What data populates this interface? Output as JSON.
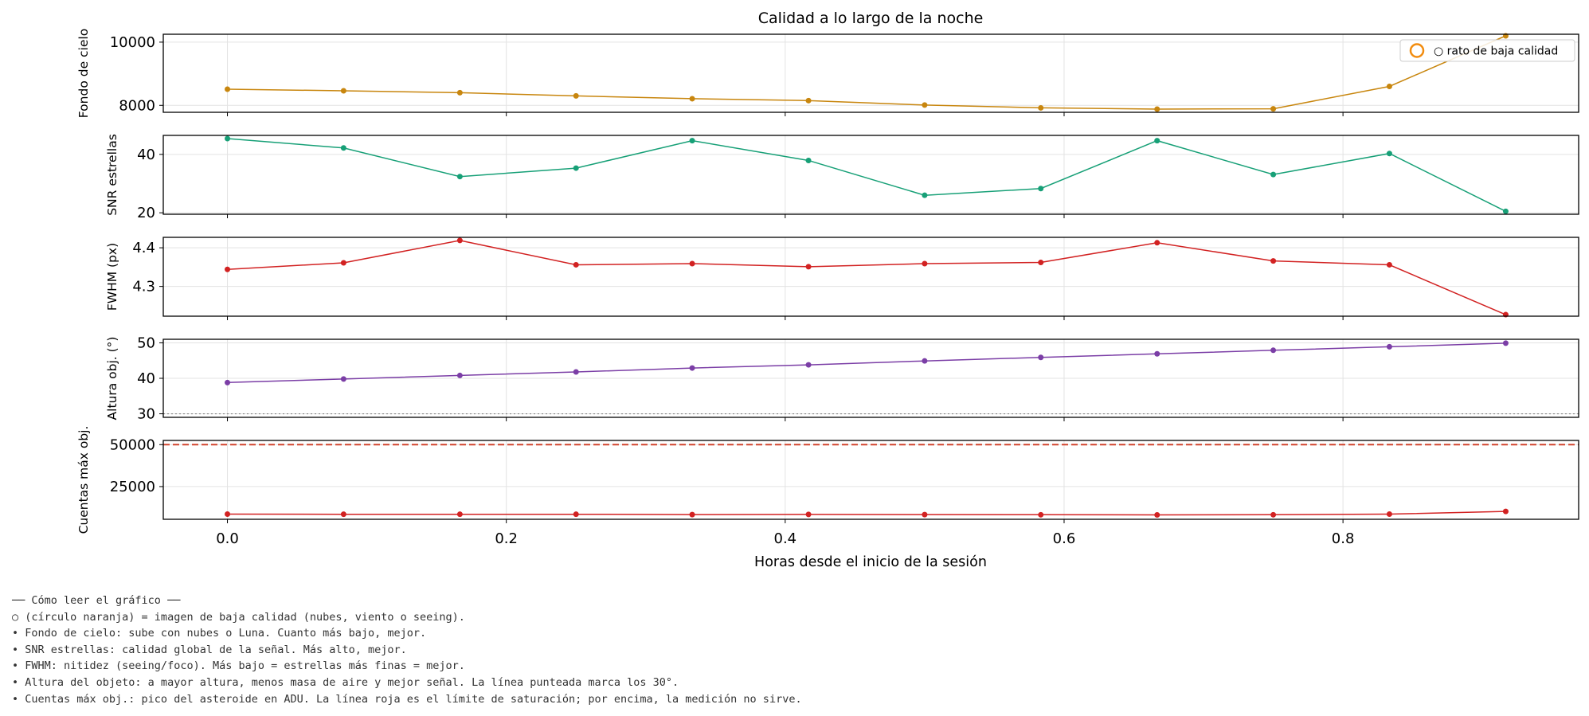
{
  "chart_data": {
    "type": "line",
    "title": "Calidad a lo largo de la noche",
    "xlabel": "Horas desde el inicio de la sesión",
    "xlim": [
      -0.046,
      0.969
    ],
    "x_ticks": [
      0.0,
      0.2,
      0.4,
      0.6,
      0.8
    ],
    "x_tick_labels": [
      "0.0",
      "0.2",
      "0.4",
      "0.6",
      "0.8"
    ],
    "x": [
      0.0,
      0.0833,
      0.1667,
      0.25,
      0.3333,
      0.4167,
      0.5,
      0.5833,
      0.6667,
      0.75,
      0.8333,
      0.9167
    ],
    "grid": true,
    "legend": {
      "label": "○ rato de baja calidad",
      "marker": "orange-open-circle",
      "placement": "top-right",
      "panel": 0
    },
    "panels": [
      {
        "ylabel": "Fondo de cielo",
        "color": "#c8860e",
        "ylim": [
          7780,
          10250
        ],
        "y_ticks": [
          8000,
          10000
        ],
        "y_tick_labels": [
          "8000",
          "10000"
        ],
        "values": [
          8510,
          8460,
          8400,
          8300,
          8210,
          8150,
          8010,
          7920,
          7880,
          7890,
          8600,
          10200
        ]
      },
      {
        "ylabel": "SNR estrellas",
        "color": "#17a077",
        "ylim": [
          19.5,
          46.5
        ],
        "y_ticks": [
          20,
          40
        ],
        "y_tick_labels": [
          "20",
          "40"
        ],
        "values": [
          45.4,
          42.2,
          32.4,
          35.3,
          44.7,
          37.9,
          26.0,
          28.3,
          44.7,
          33.1,
          40.3,
          20.5
        ]
      },
      {
        "ylabel": "FWHM (px)",
        "color": "#d22222",
        "ylim": [
          4.223,
          4.427
        ],
        "y_ticks": [
          4.3,
          4.4
        ],
        "y_tick_labels": [
          "4.3",
          "4.4"
        ],
        "values": [
          4.344,
          4.361,
          4.419,
          4.356,
          4.359,
          4.351,
          4.359,
          4.362,
          4.413,
          4.366,
          4.356,
          4.227
        ]
      },
      {
        "ylabel": "Altura obj. (°)",
        "color": "#7b3ea6",
        "ylim": [
          29,
          51
        ],
        "y_ticks": [
          30,
          40,
          50
        ],
        "y_tick_labels": [
          "30",
          "40",
          "50"
        ],
        "values": [
          38.8,
          39.8,
          40.8,
          41.8,
          42.9,
          43.8,
          44.9,
          45.9,
          46.9,
          47.9,
          48.9,
          49.9
        ],
        "reference_line": {
          "y": 30,
          "style": "dotted",
          "color": "#888888"
        }
      },
      {
        "ylabel": "Cuentas máx obj.",
        "color": "#d22222",
        "ylim": [
          5500,
          52500
        ],
        "y_ticks": [
          25000,
          50000
        ],
        "y_tick_labels": [
          "25000",
          "50000"
        ],
        "values": [
          8600,
          8500,
          8500,
          8500,
          8300,
          8400,
          8300,
          8200,
          8100,
          8200,
          8600,
          10200
        ],
        "reference_line": {
          "y": 50000,
          "style": "dashed",
          "color": "#d2452f"
        }
      }
    ]
  },
  "notes": [
    "── Cómo leer el gráfico ──",
    "○ (círculo naranja) = imagen de baja calidad (nubes, viento o seeing).",
    "• Fondo de cielo: sube con nubes o Luna. Cuanto más bajo, mejor.",
    "• SNR estrellas: calidad global de la señal. Más alto, mejor.",
    "• FWHM: nitidez (seeing/foco). Más bajo = estrellas más finas = mejor.",
    "• Altura del objeto: a mayor altura, menos masa de aire y mejor señal. La línea punteada marca los 30°.",
    "• Cuentas máx obj.: pico del asteroide en ADU. La línea roja es el límite de saturación; por encima, la medición no sirve."
  ]
}
